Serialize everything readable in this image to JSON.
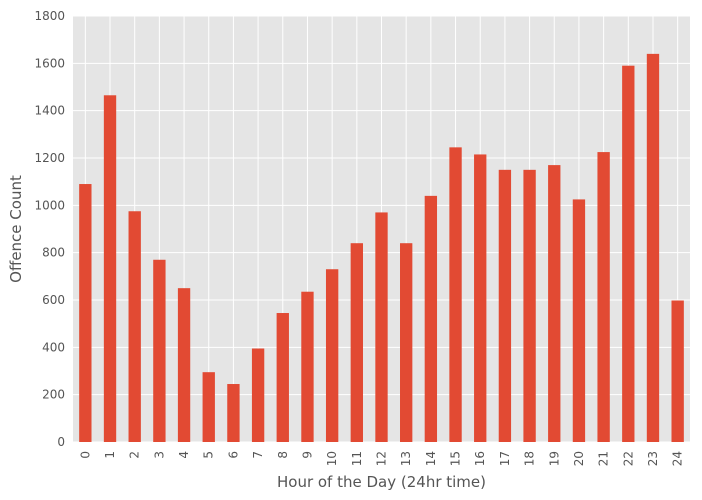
{
  "chart_data": {
    "type": "bar",
    "title": "",
    "xlabel": "Hour of the Day (24hr time)",
    "ylabel": "Offence Count",
    "categories": [
      "0",
      "1",
      "2",
      "3",
      "4",
      "5",
      "6",
      "7",
      "8",
      "9",
      "10",
      "11",
      "12",
      "13",
      "14",
      "15",
      "16",
      "17",
      "18",
      "19",
      "20",
      "21",
      "22",
      "23",
      "24"
    ],
    "series": [
      {
        "values": [
          1090,
          1465,
          975,
          770,
          650,
          295,
          245,
          395,
          545,
          635,
          730,
          840,
          970,
          840,
          1040,
          1245,
          1215,
          1150,
          1150,
          1170,
          1025,
          1225,
          1590,
          1640,
          598
        ]
      }
    ],
    "ylim": [
      0,
      1800
    ],
    "yticks": [
      0,
      200,
      400,
      600,
      800,
      1000,
      1200,
      1400,
      1600,
      1800
    ],
    "grid": true,
    "legend": "none",
    "colors": {
      "bar": "#E24A33",
      "plot_background": "#E5E5E5",
      "grid": "#FFFFFF",
      "text": "#555555"
    }
  }
}
